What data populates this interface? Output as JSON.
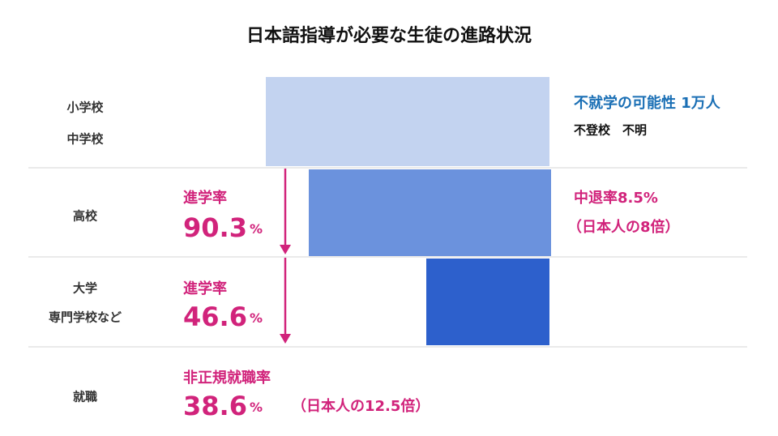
{
  "title": "日本語指導が必要な生徒の進路状況",
  "rows": [
    {
      "labels": [
        "小学校",
        "中学校"
      ],
      "right": [
        "不就学の可能性 1万人",
        "不登校　不明"
      ]
    },
    {
      "labels": [
        "高校"
      ],
      "left": {
        "label": "進学率",
        "value": "90.3",
        "unit": "%"
      },
      "right": [
        "中退率8.5%",
        "（日本人の8倍）"
      ]
    },
    {
      "labels": [
        "大学",
        "専門学校など"
      ],
      "left": {
        "label": "進学率",
        "value": "46.6",
        "unit": "%"
      }
    },
    {
      "labels": [
        "就職"
      ],
      "left": {
        "label": "非正規就職率",
        "value": "38.6",
        "unit": "%"
      },
      "note": "（日本人の12.5倍）"
    }
  ]
}
